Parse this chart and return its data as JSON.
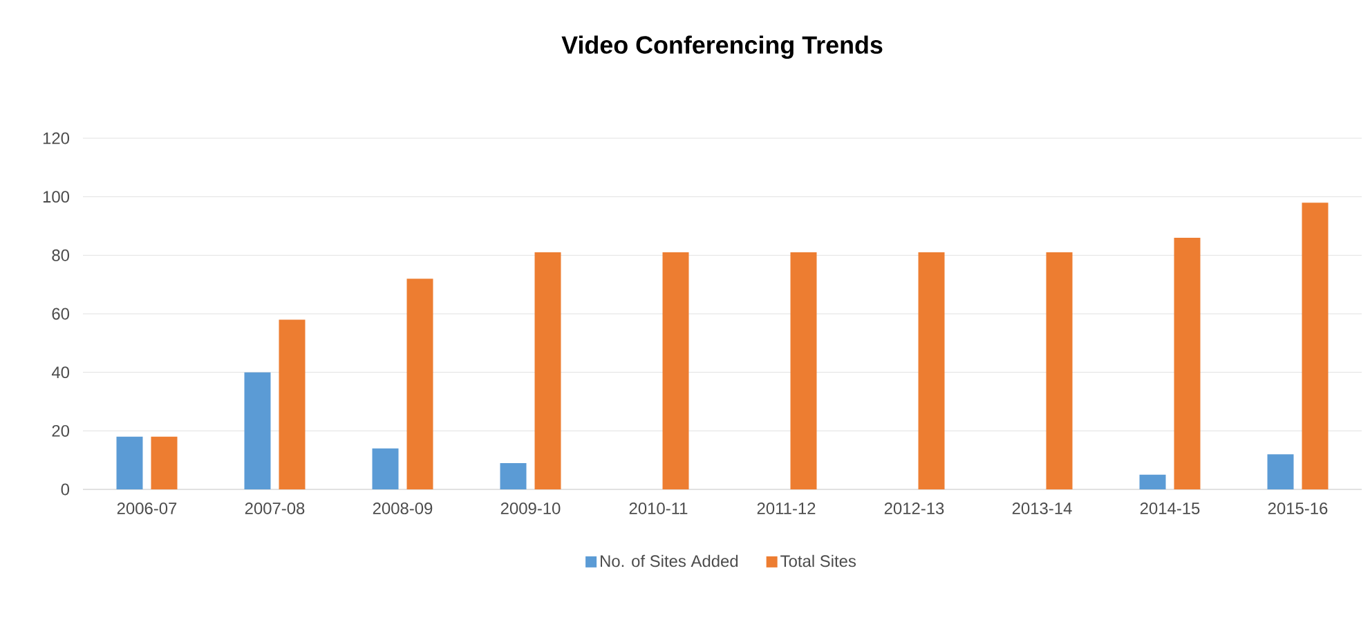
{
  "chart_data": {
    "type": "bar",
    "title": "Video Conferencing Trends",
    "categories": [
      "2006-07",
      "2007-08",
      "2008-09",
      "2009-10",
      "2010-11",
      "2011-12",
      "2012-13",
      "2013-14",
      "2014-15",
      "2015-16"
    ],
    "series": [
      {
        "name": "No. of Sites Added",
        "color": "#5b9bd5",
        "values": [
          18,
          40,
          14,
          9,
          0,
          0,
          0,
          0,
          5,
          12
        ]
      },
      {
        "name": "Total Sites",
        "color": "#ed7d31",
        "values": [
          18,
          58,
          72,
          81,
          81,
          81,
          81,
          81,
          86,
          98
        ]
      }
    ],
    "ylim": [
      0,
      120
    ],
    "yticks": [
      0,
      20,
      40,
      60,
      80,
      100,
      120
    ],
    "grid": "y",
    "legend": "bottom"
  }
}
